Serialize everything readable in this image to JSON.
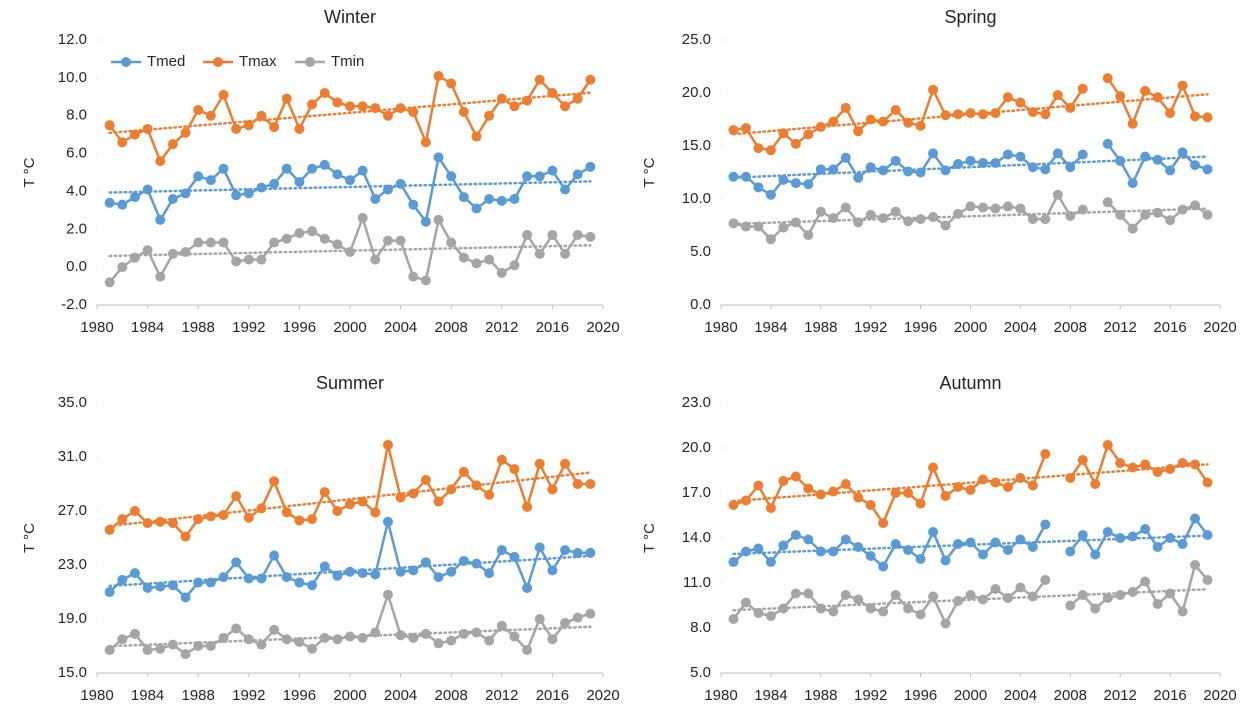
{
  "chart_data": [
    {
      "type": "line",
      "title": "Winter",
      "ylabel": "T °C",
      "legend": "top-left",
      "grid": false,
      "trendline": true,
      "x": [
        1981,
        1982,
        1983,
        1984,
        1985,
        1986,
        1987,
        1988,
        1989,
        1990,
        1991,
        1992,
        1993,
        1994,
        1995,
        1996,
        1997,
        1998,
        1999,
        2000,
        2001,
        2002,
        2003,
        2004,
        2005,
        2006,
        2007,
        2008,
        2009,
        2010,
        2011,
        2012,
        2013,
        2014,
        2015,
        2016,
        2017,
        2018,
        2019
      ],
      "xlim": [
        1980,
        2020
      ],
      "xticks": [
        1980,
        1984,
        1988,
        1992,
        1996,
        2000,
        2004,
        2008,
        2012,
        2016,
        2020
      ],
      "ylim": [
        -2,
        12
      ],
      "yticks": [
        {
          "value": -2,
          "label": "-2.0"
        },
        {
          "value": 0,
          "label": "0.0"
        },
        {
          "value": 2,
          "label": "2.0"
        },
        {
          "value": 4,
          "label": "4.0"
        },
        {
          "value": 6,
          "label": "6.0"
        },
        {
          "value": 8,
          "label": "8.0"
        },
        {
          "value": 10,
          "label": "10.0"
        },
        {
          "value": 12,
          "label": "12.0"
        }
      ],
      "series": [
        {
          "name": "Tmed",
          "color": "#5b9bd5",
          "values": [
            3.4,
            3.3,
            3.7,
            4.1,
            2.5,
            3.6,
            3.9,
            4.8,
            4.6,
            5.2,
            3.8,
            3.9,
            4.2,
            4.4,
            5.2,
            4.5,
            5.2,
            5.4,
            4.9,
            4.6,
            5.1,
            3.6,
            4.1,
            4.4,
            3.3,
            2.4,
            5.8,
            4.8,
            3.7,
            3.1,
            3.6,
            3.5,
            3.6,
            4.8,
            4.8,
            5.1,
            4.1,
            4.9,
            5.3
          ]
        },
        {
          "name": "Tmax",
          "color": "#ed7d31",
          "values": [
            7.5,
            6.6,
            7.0,
            7.3,
            5.6,
            6.5,
            7.1,
            8.3,
            8.0,
            9.1,
            7.3,
            7.5,
            8.0,
            7.4,
            8.9,
            7.3,
            8.6,
            9.2,
            8.7,
            8.5,
            8.5,
            8.4,
            8.0,
            8.4,
            8.2,
            6.6,
            10.1,
            9.7,
            8.2,
            6.9,
            8.0,
            8.9,
            8.5,
            8.8,
            9.9,
            9.2,
            8.5,
            8.9,
            9.9
          ]
        },
        {
          "name": "Tmin",
          "color": "#a5a5a5",
          "values": [
            -0.8,
            0.0,
            0.5,
            0.9,
            -0.5,
            0.7,
            0.8,
            1.3,
            1.3,
            1.3,
            0.3,
            0.4,
            0.4,
            1.3,
            1.5,
            1.8,
            1.9,
            1.5,
            1.2,
            0.8,
            2.6,
            0.4,
            1.4,
            1.4,
            -0.5,
            -0.7,
            2.5,
            1.3,
            0.5,
            0.2,
            0.4,
            -0.3,
            0.1,
            1.7,
            0.7,
            1.7,
            0.7,
            1.7,
            1.6
          ]
        }
      ]
    },
    {
      "type": "line",
      "title": "Spring",
      "ylabel": "T °C",
      "grid": false,
      "trendline": true,
      "x": [
        1981,
        1982,
        1983,
        1984,
        1985,
        1986,
        1987,
        1988,
        1989,
        1990,
        1991,
        1992,
        1993,
        1994,
        1995,
        1996,
        1997,
        1998,
        1999,
        2000,
        2001,
        2002,
        2003,
        2004,
        2005,
        2006,
        2007,
        2008,
        2009,
        2010,
        2011,
        2012,
        2013,
        2014,
        2015,
        2016,
        2017,
        2018,
        2019
      ],
      "xlim": [
        1980,
        2020
      ],
      "xticks": [
        1980,
        1984,
        1988,
        1992,
        1996,
        2000,
        2004,
        2008,
        2012,
        2016,
        2020
      ],
      "ylim": [
        0,
        25
      ],
      "yticks": [
        {
          "value": 0,
          "label": "0.0"
        },
        {
          "value": 5,
          "label": "5.0"
        },
        {
          "value": 10,
          "label": "10.0"
        },
        {
          "value": 15,
          "label": "15.0"
        },
        {
          "value": 20,
          "label": "20.0"
        },
        {
          "value": 25,
          "label": "25.0"
        }
      ],
      "series": [
        {
          "name": "Tmed",
          "color": "#5b9bd5",
          "values": [
            12.1,
            12.1,
            11.1,
            10.4,
            11.8,
            11.5,
            11.4,
            12.8,
            12.8,
            13.9,
            12.0,
            13.0,
            12.7,
            13.6,
            12.6,
            12.5,
            14.3,
            12.7,
            13.3,
            13.6,
            13.4,
            13.4,
            14.2,
            14.0,
            13.0,
            12.8,
            14.3,
            13.0,
            14.2,
            null,
            15.2,
            13.6,
            11.5,
            14.0,
            13.7,
            12.7,
            14.4,
            13.2,
            12.8
          ]
        },
        {
          "name": "Tmax",
          "color": "#ed7d31",
          "values": [
            16.5,
            16.7,
            14.8,
            14.6,
            16.2,
            15.2,
            16.1,
            16.8,
            17.3,
            18.6,
            16.4,
            17.5,
            17.3,
            18.4,
            17.2,
            16.9,
            20.3,
            17.9,
            18.0,
            18.1,
            18.0,
            18.1,
            19.6,
            19.1,
            18.2,
            18.0,
            19.8,
            18.6,
            20.4,
            null,
            21.4,
            19.7,
            17.1,
            20.2,
            19.6,
            18.1,
            20.7,
            17.8,
            17.7
          ]
        },
        {
          "name": "Tmin",
          "color": "#a5a5a5",
          "values": [
            7.7,
            7.4,
            7.4,
            6.2,
            7.3,
            7.8,
            6.6,
            8.8,
            8.2,
            9.2,
            7.8,
            8.5,
            8.2,
            8.8,
            7.9,
            8.1,
            8.3,
            7.5,
            8.6,
            9.3,
            9.2,
            9.1,
            9.3,
            9.1,
            8.1,
            8.1,
            10.4,
            8.4,
            9.0,
            null,
            9.7,
            8.5,
            7.2,
            8.5,
            8.7,
            8.0,
            9.0,
            9.4,
            8.5
          ]
        }
      ]
    },
    {
      "type": "line",
      "title": "Summer",
      "ylabel": "T °C",
      "grid": false,
      "trendline": true,
      "x": [
        1981,
        1982,
        1983,
        1984,
        1985,
        1986,
        1987,
        1988,
        1989,
        1990,
        1991,
        1992,
        1993,
        1994,
        1995,
        1996,
        1997,
        1998,
        1999,
        2000,
        2001,
        2002,
        2003,
        2004,
        2005,
        2006,
        2007,
        2008,
        2009,
        2010,
        2011,
        2012,
        2013,
        2014,
        2015,
        2016,
        2017,
        2018,
        2019
      ],
      "xlim": [
        1980,
        2020
      ],
      "xticks": [
        1980,
        1984,
        1988,
        1992,
        1996,
        2000,
        2004,
        2008,
        2012,
        2016,
        2020
      ],
      "ylim": [
        15,
        35
      ],
      "yticks": [
        {
          "value": 15,
          "label": "15.0"
        },
        {
          "value": 19,
          "label": "19.0"
        },
        {
          "value": 23,
          "label": "23.0"
        },
        {
          "value": 27,
          "label": "27.0"
        },
        {
          "value": 31,
          "label": "31.0"
        },
        {
          "value": 35,
          "label": "35.0"
        }
      ],
      "series": [
        {
          "name": "Tmed",
          "color": "#5b9bd5",
          "values": [
            21.0,
            21.9,
            22.4,
            21.3,
            21.4,
            21.5,
            20.6,
            21.7,
            21.7,
            22.1,
            23.2,
            22.0,
            22.0,
            23.7,
            22.1,
            21.7,
            21.5,
            22.9,
            22.2,
            22.5,
            22.4,
            22.3,
            26.2,
            22.5,
            22.6,
            23.2,
            22.1,
            22.5,
            23.3,
            23.1,
            22.4,
            24.1,
            23.6,
            21.3,
            24.3,
            22.6,
            24.1,
            23.9,
            23.9
          ]
        },
        {
          "name": "Tmax",
          "color": "#ed7d31",
          "values": [
            25.6,
            26.4,
            27.0,
            26.1,
            26.2,
            26.1,
            25.1,
            26.4,
            26.6,
            26.7,
            28.1,
            26.5,
            27.2,
            29.2,
            26.9,
            26.3,
            26.4,
            28.4,
            27.0,
            27.5,
            27.7,
            26.9,
            31.9,
            28.0,
            28.3,
            29.3,
            27.7,
            28.6,
            29.9,
            28.9,
            28.2,
            30.8,
            30.1,
            27.3,
            30.5,
            28.6,
            30.5,
            29.0,
            29.0
          ]
        },
        {
          "name": "Tmin",
          "color": "#a5a5a5",
          "values": [
            16.7,
            17.5,
            17.9,
            16.7,
            16.8,
            17.1,
            16.4,
            17.0,
            17.0,
            17.6,
            18.3,
            17.5,
            17.1,
            18.2,
            17.5,
            17.3,
            16.8,
            17.6,
            17.5,
            17.7,
            17.6,
            18.0,
            20.8,
            17.8,
            17.6,
            17.9,
            17.2,
            17.4,
            17.9,
            18.0,
            17.4,
            18.5,
            17.7,
            16.7,
            19.0,
            17.5,
            18.7,
            19.1,
            19.4
          ]
        }
      ]
    },
    {
      "type": "line",
      "title": "Autumn",
      "ylabel": "T °C",
      "grid": false,
      "trendline": true,
      "x": [
        1981,
        1982,
        1983,
        1984,
        1985,
        1986,
        1987,
        1988,
        1989,
        1990,
        1991,
        1992,
        1993,
        1994,
        1995,
        1996,
        1997,
        1998,
        1999,
        2000,
        2001,
        2002,
        2003,
        2004,
        2005,
        2006,
        2007,
        2008,
        2009,
        2010,
        2011,
        2012,
        2013,
        2014,
        2015,
        2016,
        2017,
        2018,
        2019
      ],
      "xlim": [
        1980,
        2020
      ],
      "xticks": [
        1980,
        1984,
        1988,
        1992,
        1996,
        2000,
        2004,
        2008,
        2012,
        2016,
        2020
      ],
      "ylim": [
        5,
        23
      ],
      "yticks": [
        {
          "value": 5,
          "label": "5.0"
        },
        {
          "value": 8,
          "label": "8.0"
        },
        {
          "value": 11,
          "label": "11.0"
        },
        {
          "value": 14,
          "label": "14.0"
        },
        {
          "value": 17,
          "label": "17.0"
        },
        {
          "value": 20,
          "label": "20.0"
        },
        {
          "value": 23,
          "label": "23.0"
        }
      ],
      "series": [
        {
          "name": "Tmed",
          "color": "#5b9bd5",
          "values": [
            12.4,
            13.1,
            13.3,
            12.4,
            13.5,
            14.2,
            13.9,
            13.1,
            13.1,
            13.9,
            13.4,
            12.8,
            12.1,
            13.6,
            13.2,
            12.6,
            14.4,
            12.5,
            13.6,
            13.7,
            12.9,
            13.7,
            13.2,
            13.9,
            13.4,
            14.9,
            null,
            13.1,
            14.2,
            12.9,
            14.4,
            14.0,
            14.1,
            14.6,
            13.4,
            14.0,
            13.6,
            15.3,
            14.2
          ]
        },
        {
          "name": "Tmax",
          "color": "#ed7d31",
          "values": [
            16.2,
            16.5,
            17.5,
            16.0,
            17.8,
            18.1,
            17.3,
            16.9,
            17.1,
            17.6,
            16.7,
            16.2,
            15.0,
            17.0,
            17.0,
            16.3,
            18.7,
            16.8,
            17.4,
            17.2,
            17.9,
            17.7,
            17.4,
            18.0,
            17.5,
            19.6,
            null,
            18.0,
            19.2,
            17.6,
            20.2,
            19.0,
            18.7,
            18.9,
            18.4,
            18.6,
            19.0,
            18.9,
            17.7
          ]
        },
        {
          "name": "Tmin",
          "color": "#a5a5a5",
          "values": [
            8.6,
            9.7,
            9.0,
            8.8,
            9.3,
            10.3,
            10.3,
            9.3,
            9.1,
            10.2,
            9.9,
            9.3,
            9.1,
            10.2,
            9.3,
            8.9,
            10.1,
            8.3,
            9.8,
            10.2,
            9.9,
            10.6,
            10.0,
            10.7,
            10.1,
            11.2,
            null,
            9.5,
            10.2,
            9.3,
            10.0,
            10.2,
            10.4,
            11.1,
            9.6,
            10.3,
            9.1,
            12.2,
            11.2
          ]
        }
      ]
    }
  ]
}
